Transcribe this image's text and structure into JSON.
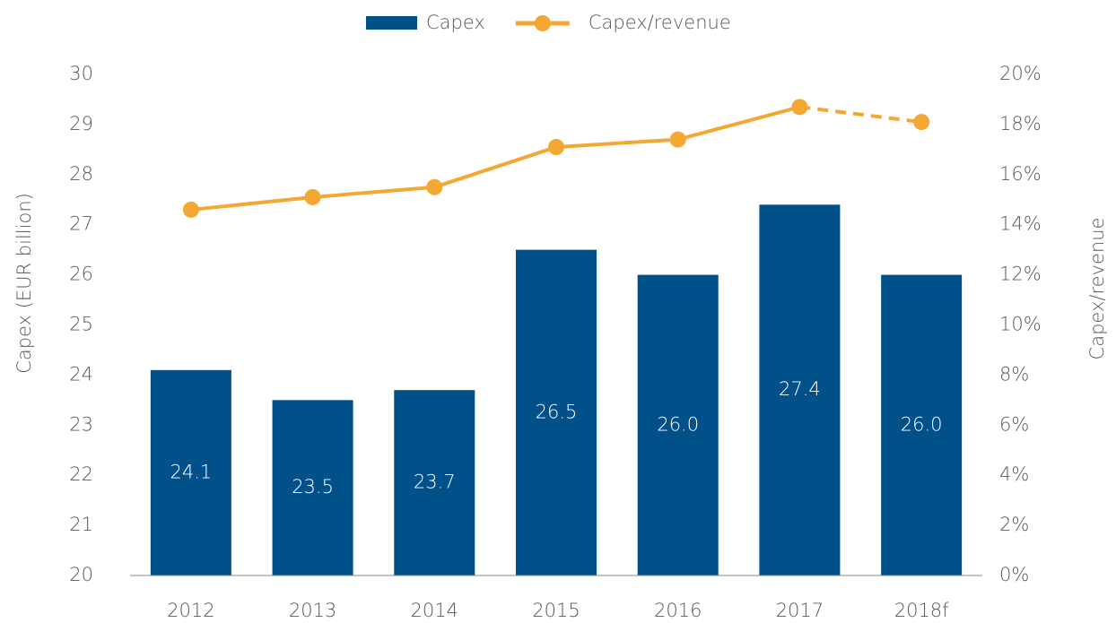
{
  "chart_data": {
    "type": "bar_line",
    "categories": [
      "2012",
      "2013",
      "2014",
      "2015",
      "2016",
      "2017",
      "2018f"
    ],
    "series": [
      {
        "name": "Capex",
        "type": "bar",
        "color": "#00508a",
        "values": [
          24.1,
          23.5,
          23.7,
          26.5,
          26.0,
          27.4,
          26.0
        ],
        "value_labels": [
          "24.1",
          "23.5",
          "23.7",
          "26.5",
          "26.0",
          "27.4",
          "26.0"
        ]
      },
      {
        "name": "Capex/revenue",
        "type": "line",
        "axis": "y2",
        "color": "#f5a733",
        "values": [
          14.6,
          15.1,
          15.5,
          17.1,
          17.4,
          18.7,
          18.1
        ],
        "segment_styles": [
          "solid",
          "solid",
          "solid",
          "solid",
          "solid",
          "solid",
          "dashed"
        ]
      }
    ],
    "ylabel": "Capex (EUR billion)",
    "y2label": "Capex/revenue",
    "ylim": [
      20,
      30
    ],
    "yticks": [
      20,
      21,
      22,
      23,
      24,
      25,
      26,
      27,
      28,
      29,
      30
    ],
    "y2lim": [
      0,
      20
    ],
    "y2ticks": [
      {
        "value": 0,
        "label": "0%"
      },
      {
        "value": 2,
        "label": "2%"
      },
      {
        "value": 4,
        "label": "4%"
      },
      {
        "value": 6,
        "label": "6%"
      },
      {
        "value": 8,
        "label": "8%"
      },
      {
        "value": 10,
        "label": "10%"
      },
      {
        "value": 12,
        "label": "12%"
      },
      {
        "value": 14,
        "label": "14%"
      },
      {
        "value": 16,
        "label": "16%"
      },
      {
        "value": 18,
        "label": "18%"
      },
      {
        "value": 20,
        "label": "20%"
      }
    ],
    "legend": "top"
  }
}
